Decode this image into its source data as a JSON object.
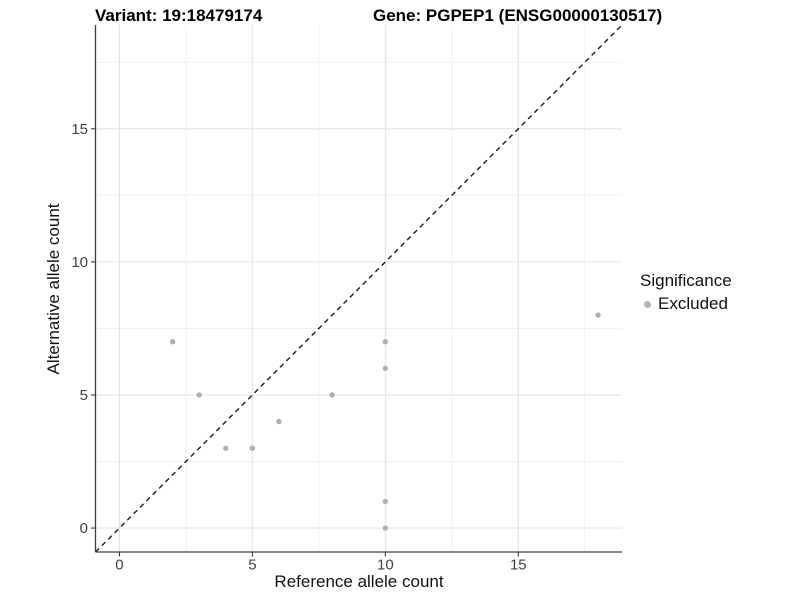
{
  "colors": {
    "background": "#ffffff",
    "point": "#b0b0b0",
    "grid_major": "#e4e4e4",
    "grid_minor": "#efefef",
    "axis_line": "#3c3c3c",
    "identity_line": "#1c1c1c",
    "title_text": "#000000",
    "tick_text": "#424242"
  },
  "chart_data": {
    "type": "scatter",
    "title_left": "Variant: 19:18479174",
    "title_right": "Gene: PGPEP1 (ENSG00000130517)",
    "xlabel": "Reference allele count",
    "ylabel": "Alternative allele count",
    "xlim": [
      -0.9,
      18.9
    ],
    "ylim": [
      -0.9,
      18.9
    ],
    "major_ticks": [
      0,
      5,
      10,
      15
    ],
    "minor_ticks": [
      2.5,
      7.5,
      12.5,
      17.5
    ],
    "grid": true,
    "identity_line": {
      "style": "dashed",
      "from": -0.9,
      "to": 18.9
    },
    "series": [
      {
        "name": "Excluded",
        "color": "#b0b0b0",
        "points": [
          [
            2,
            7
          ],
          [
            3,
            5
          ],
          [
            4,
            3
          ],
          [
            5,
            3
          ],
          [
            6,
            4
          ],
          [
            8,
            5
          ],
          [
            10,
            7
          ],
          [
            10,
            6
          ],
          [
            10,
            1
          ],
          [
            10,
            0
          ],
          [
            18,
            8
          ]
        ]
      }
    ],
    "legend": {
      "title": "Significance",
      "position": "right",
      "items": [
        {
          "label": "Excluded",
          "color": "#b4b4b4"
        }
      ]
    }
  }
}
